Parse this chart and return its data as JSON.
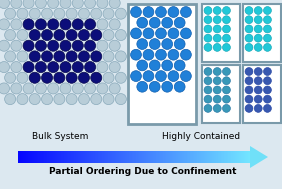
{
  "bg_color": "#dce8f0",
  "bulk_outer_circle_color": "#b8cdd8",
  "bulk_outer_stroke": "#8aaabb",
  "bulk_inner_circle_color": "#0c0e7a",
  "bulk_inner_stroke": "#06084a",
  "medium_box_border": "#7a9aaa",
  "medium_circle_color": "#2080d8",
  "medium_circle_stroke": "#1060b0",
  "small_tl_circle_color": "#20c8d8",
  "small_tl_stroke": "#10a0b0",
  "small_tr_circle_color": "#20c8d8",
  "small_tr_stroke": "#10a0b0",
  "small_bl_circle_color": "#3898b8",
  "small_bl_stroke": "#2070a0",
  "small_br_circle_color": "#3858b0",
  "small_br_stroke": "#2040a0",
  "text_bulk": "Bulk System",
  "text_contained": "Highly Contained",
  "text_arrow": "Partial Ordering Due to Confinement",
  "figsize": [
    2.82,
    1.89
  ],
  "dpi": 100
}
